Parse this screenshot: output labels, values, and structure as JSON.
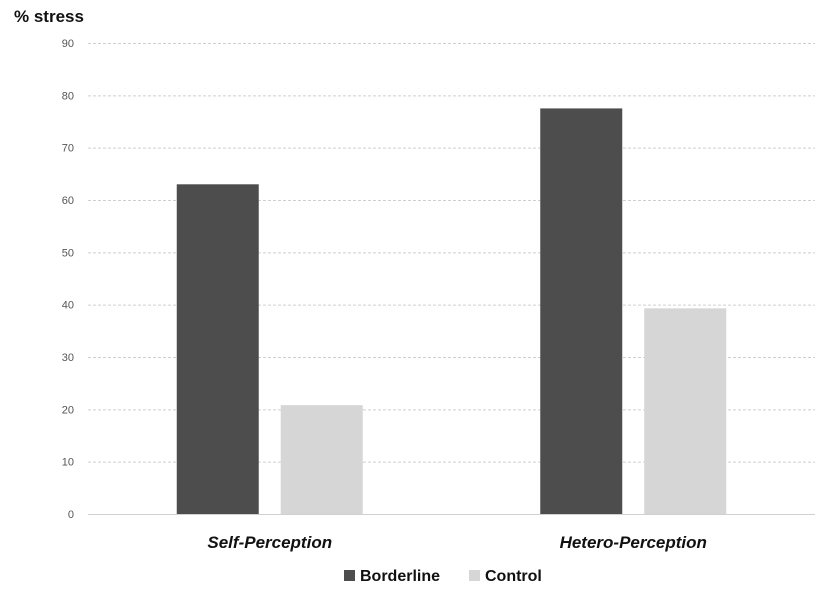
{
  "chart_data": {
    "type": "bar",
    "ylabel": "% stress",
    "xlabel": "",
    "categories": [
      "Self-Perception",
      "Hetero-Perception"
    ],
    "series": [
      {
        "name": "Borderline",
        "values": [
          63,
          77.5
        ],
        "color": "#4d4d4d"
      },
      {
        "name": "Control",
        "values": [
          20.8,
          39.3
        ],
        "color": "#d6d6d6"
      }
    ],
    "ylim": [
      0,
      90
    ],
    "yticks": [
      "0",
      "10",
      "20",
      "30",
      "40",
      "50",
      "60",
      "70",
      "80",
      "90"
    ],
    "grid": true,
    "grid_style": "dashed",
    "legend_position": "bottom-center"
  }
}
